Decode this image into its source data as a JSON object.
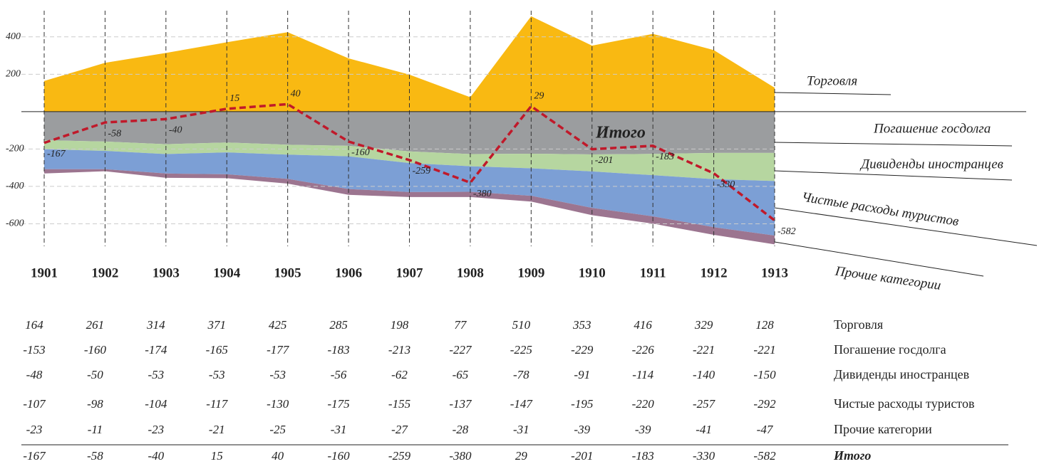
{
  "chart_data": {
    "type": "area",
    "x": [
      1901,
      1902,
      1903,
      1904,
      1905,
      1906,
      1907,
      1908,
      1909,
      1910,
      1911,
      1912,
      1913
    ],
    "ylim": [
      -720,
      540
    ],
    "yticks": [
      400,
      200,
      -200,
      -400,
      -600
    ],
    "grid": true,
    "series": [
      {
        "name": "Торговля",
        "color": "#f9b912",
        "values": [
          164,
          261,
          314,
          371,
          425,
          285,
          198,
          77,
          510,
          353,
          416,
          329,
          128
        ]
      },
      {
        "name": "Погашение госдолга",
        "color": "#9b9d9f",
        "values": [
          -153,
          -160,
          -174,
          -165,
          -177,
          -183,
          -213,
          -227,
          -225,
          -229,
          -226,
          -221,
          -221
        ]
      },
      {
        "name": "Дивиденды иностранцев",
        "color": "#b6d6a0",
        "values": [
          -48,
          -50,
          -53,
          -53,
          -53,
          -56,
          -62,
          -65,
          -78,
          -91,
          -114,
          -140,
          -150
        ]
      },
      {
        "name": "Чистые расходы туристов",
        "color": "#7c9fd5",
        "values": [
          -107,
          -98,
          -104,
          -117,
          -130,
          -175,
          -155,
          -137,
          -147,
          -195,
          -220,
          -257,
          -292
        ]
      },
      {
        "name": "Прочие категории",
        "color": "#9c7590",
        "values": [
          -23,
          -11,
          -23,
          -21,
          -25,
          -31,
          -27,
          -28,
          -31,
          -39,
          -39,
          -41,
          -47
        ]
      }
    ],
    "total": {
      "name": "Итого",
      "color": "#c0192a",
      "values": [
        -167,
        -58,
        -40,
        15,
        40,
        -160,
        -259,
        -380,
        29,
        -201,
        -183,
        -330,
        -582
      ]
    }
  }
}
